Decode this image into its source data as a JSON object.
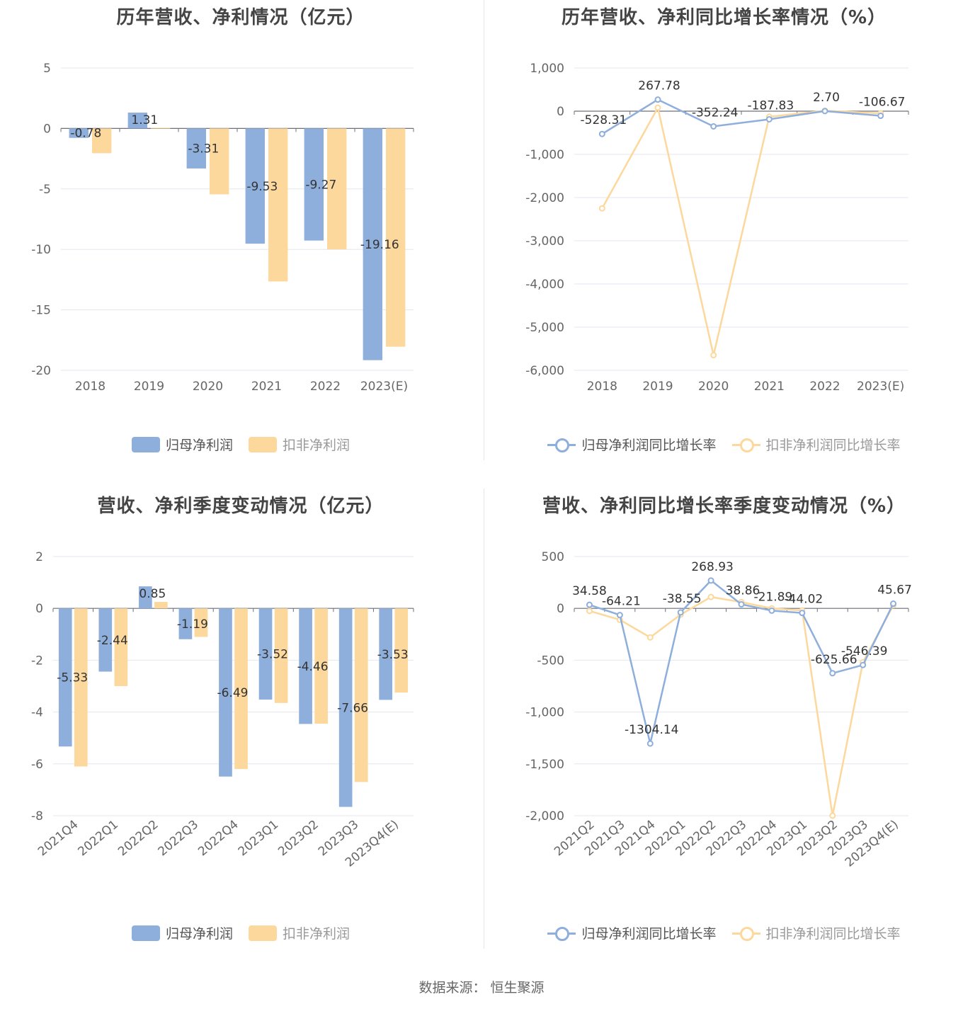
{
  "colors": {
    "series1": "#8eaedc",
    "series2": "#fdd89c",
    "grid": "#e6e6f0",
    "axis": "#6e7079"
  },
  "charts": [
    {
      "title": "历年营收、净利情况（亿元）",
      "legend": [
        {
          "label": "归母净利润",
          "shape": "bar",
          "color": "#8eaedc"
        },
        {
          "label": "扣非净利润",
          "shape": "bar",
          "color": "#fdd89c"
        }
      ],
      "chart_data": {
        "type": "bar",
        "categories": [
          "2018",
          "2019",
          "2020",
          "2021",
          "2022",
          "2023(E)"
        ],
        "series": [
          {
            "name": "归母净利润",
            "values": [
              -0.78,
              1.31,
              -3.31,
              -9.53,
              -9.27,
              -19.16
            ],
            "labels": [
              "-0.78",
              "1.31",
              "-3.31",
              "-9.53",
              "-9.27",
              "-19.16"
            ]
          },
          {
            "name": "扣非净利润",
            "values": [
              -2.05,
              0.05,
              -5.45,
              -12.65,
              -10.0,
              -18.05
            ]
          }
        ],
        "y_ticks": [
          "5",
          "0",
          "-5",
          "-10",
          "-15",
          "-20"
        ],
        "ylim": [
          -20,
          5
        ],
        "label_series": 0
      }
    },
    {
      "title": "历年营收、净利同比增长率情况（%）",
      "legend": [
        {
          "label": "归母净利润同比增长率",
          "shape": "line",
          "color": "#8eaedc"
        },
        {
          "label": "扣非净利润同比增长率",
          "shape": "line",
          "color": "#fdd89c"
        }
      ],
      "chart_data": {
        "type": "line",
        "categories": [
          "2018",
          "2019",
          "2020",
          "2021",
          "2022",
          "2023(E)"
        ],
        "series": [
          {
            "name": "归母净利润同比增长率",
            "values": [
              -528.31,
              267.78,
              -352.24,
              -187.83,
              2.7,
              -106.67
            ],
            "labels": [
              "-528.31",
              "267.78",
              "-352.24",
              "-187.83",
              "2.70",
              "-106.67"
            ]
          },
          {
            "name": "扣非净利润同比增长率",
            "values": [
              -2250,
              80,
              -5650,
              -130,
              10,
              -50
            ]
          }
        ],
        "y_ticks": [
          "1,000",
          "0",
          "-1,000",
          "-2,000",
          "-3,000",
          "-4,000",
          "-5,000",
          "-6,000"
        ],
        "ylim": [
          -6000,
          1000
        ],
        "label_series": 0
      }
    },
    {
      "title": "营收、净利季度变动情况（亿元）",
      "legend": [
        {
          "label": "归母净利润",
          "shape": "bar",
          "color": "#8eaedc"
        },
        {
          "label": "扣非净利润",
          "shape": "bar",
          "color": "#fdd89c"
        }
      ],
      "chart_data": {
        "type": "bar",
        "categories": [
          "2021Q4",
          "2022Q1",
          "2022Q2",
          "2022Q3",
          "2022Q4",
          "2023Q1",
          "2023Q2",
          "2023Q3",
          "2023Q4(E)"
        ],
        "series": [
          {
            "name": "归母净利润",
            "values": [
              -5.33,
              -2.44,
              0.85,
              -1.19,
              -6.49,
              -3.52,
              -4.46,
              -7.66,
              -3.53
            ],
            "labels": [
              "-5.33",
              "-2.44",
              "0.85",
              "-1.19",
              "-6.49",
              "-3.52",
              "-4.46",
              "-7.66",
              "-3.53"
            ]
          },
          {
            "name": "扣非净利润",
            "values": [
              -6.1,
              -3.0,
              0.25,
              -1.1,
              -6.2,
              -3.65,
              -4.45,
              -6.7,
              -3.25
            ]
          }
        ],
        "y_ticks": [
          "2",
          "0",
          "-2",
          "-4",
          "-6",
          "-8"
        ],
        "ylim": [
          -8,
          2
        ],
        "label_series": 0,
        "rotate_x": true
      }
    },
    {
      "title": "营收、净利同比增长率季度变动情况（%）",
      "legend": [
        {
          "label": "归母净利润同比增长率",
          "shape": "line",
          "color": "#8eaedc"
        },
        {
          "label": "扣非净利润同比增长率",
          "shape": "line",
          "color": "#fdd89c"
        }
      ],
      "chart_data": {
        "type": "line",
        "categories": [
          "2021Q2",
          "2021Q3",
          "2021Q4",
          "2022Q1",
          "2022Q2",
          "2022Q3",
          "2022Q4",
          "2023Q1",
          "2023Q2",
          "2023Q3",
          "2023Q4(E)"
        ],
        "series": [
          {
            "name": "归母净利润同比增长率",
            "values": [
              34.58,
              -64.21,
              -1304.14,
              -38.55,
              268.93,
              38.86,
              -21.89,
              -44.02,
              -625.66,
              -546.39,
              45.67
            ],
            "labels": [
              "34.58",
              "-64.21",
              "-1304.14",
              "-38.55",
              "268.93",
              "38.86",
              "-21.89",
              "-44.02",
              "-625.66",
              "-546.39",
              "45.67"
            ]
          },
          {
            "name": "扣非净利润同比增长率",
            "values": [
              -25,
              -110,
              -280,
              -60,
              110,
              60,
              0,
              -20,
              -2000,
              -520,
              30
            ]
          }
        ],
        "y_ticks": [
          "500",
          "0",
          "-500",
          "-1,000",
          "-1,500",
          "-2,000"
        ],
        "ylim": [
          -2000,
          500
        ],
        "label_series": 0,
        "rotate_x": true
      }
    }
  ],
  "source": "数据来源：  恒生聚源"
}
